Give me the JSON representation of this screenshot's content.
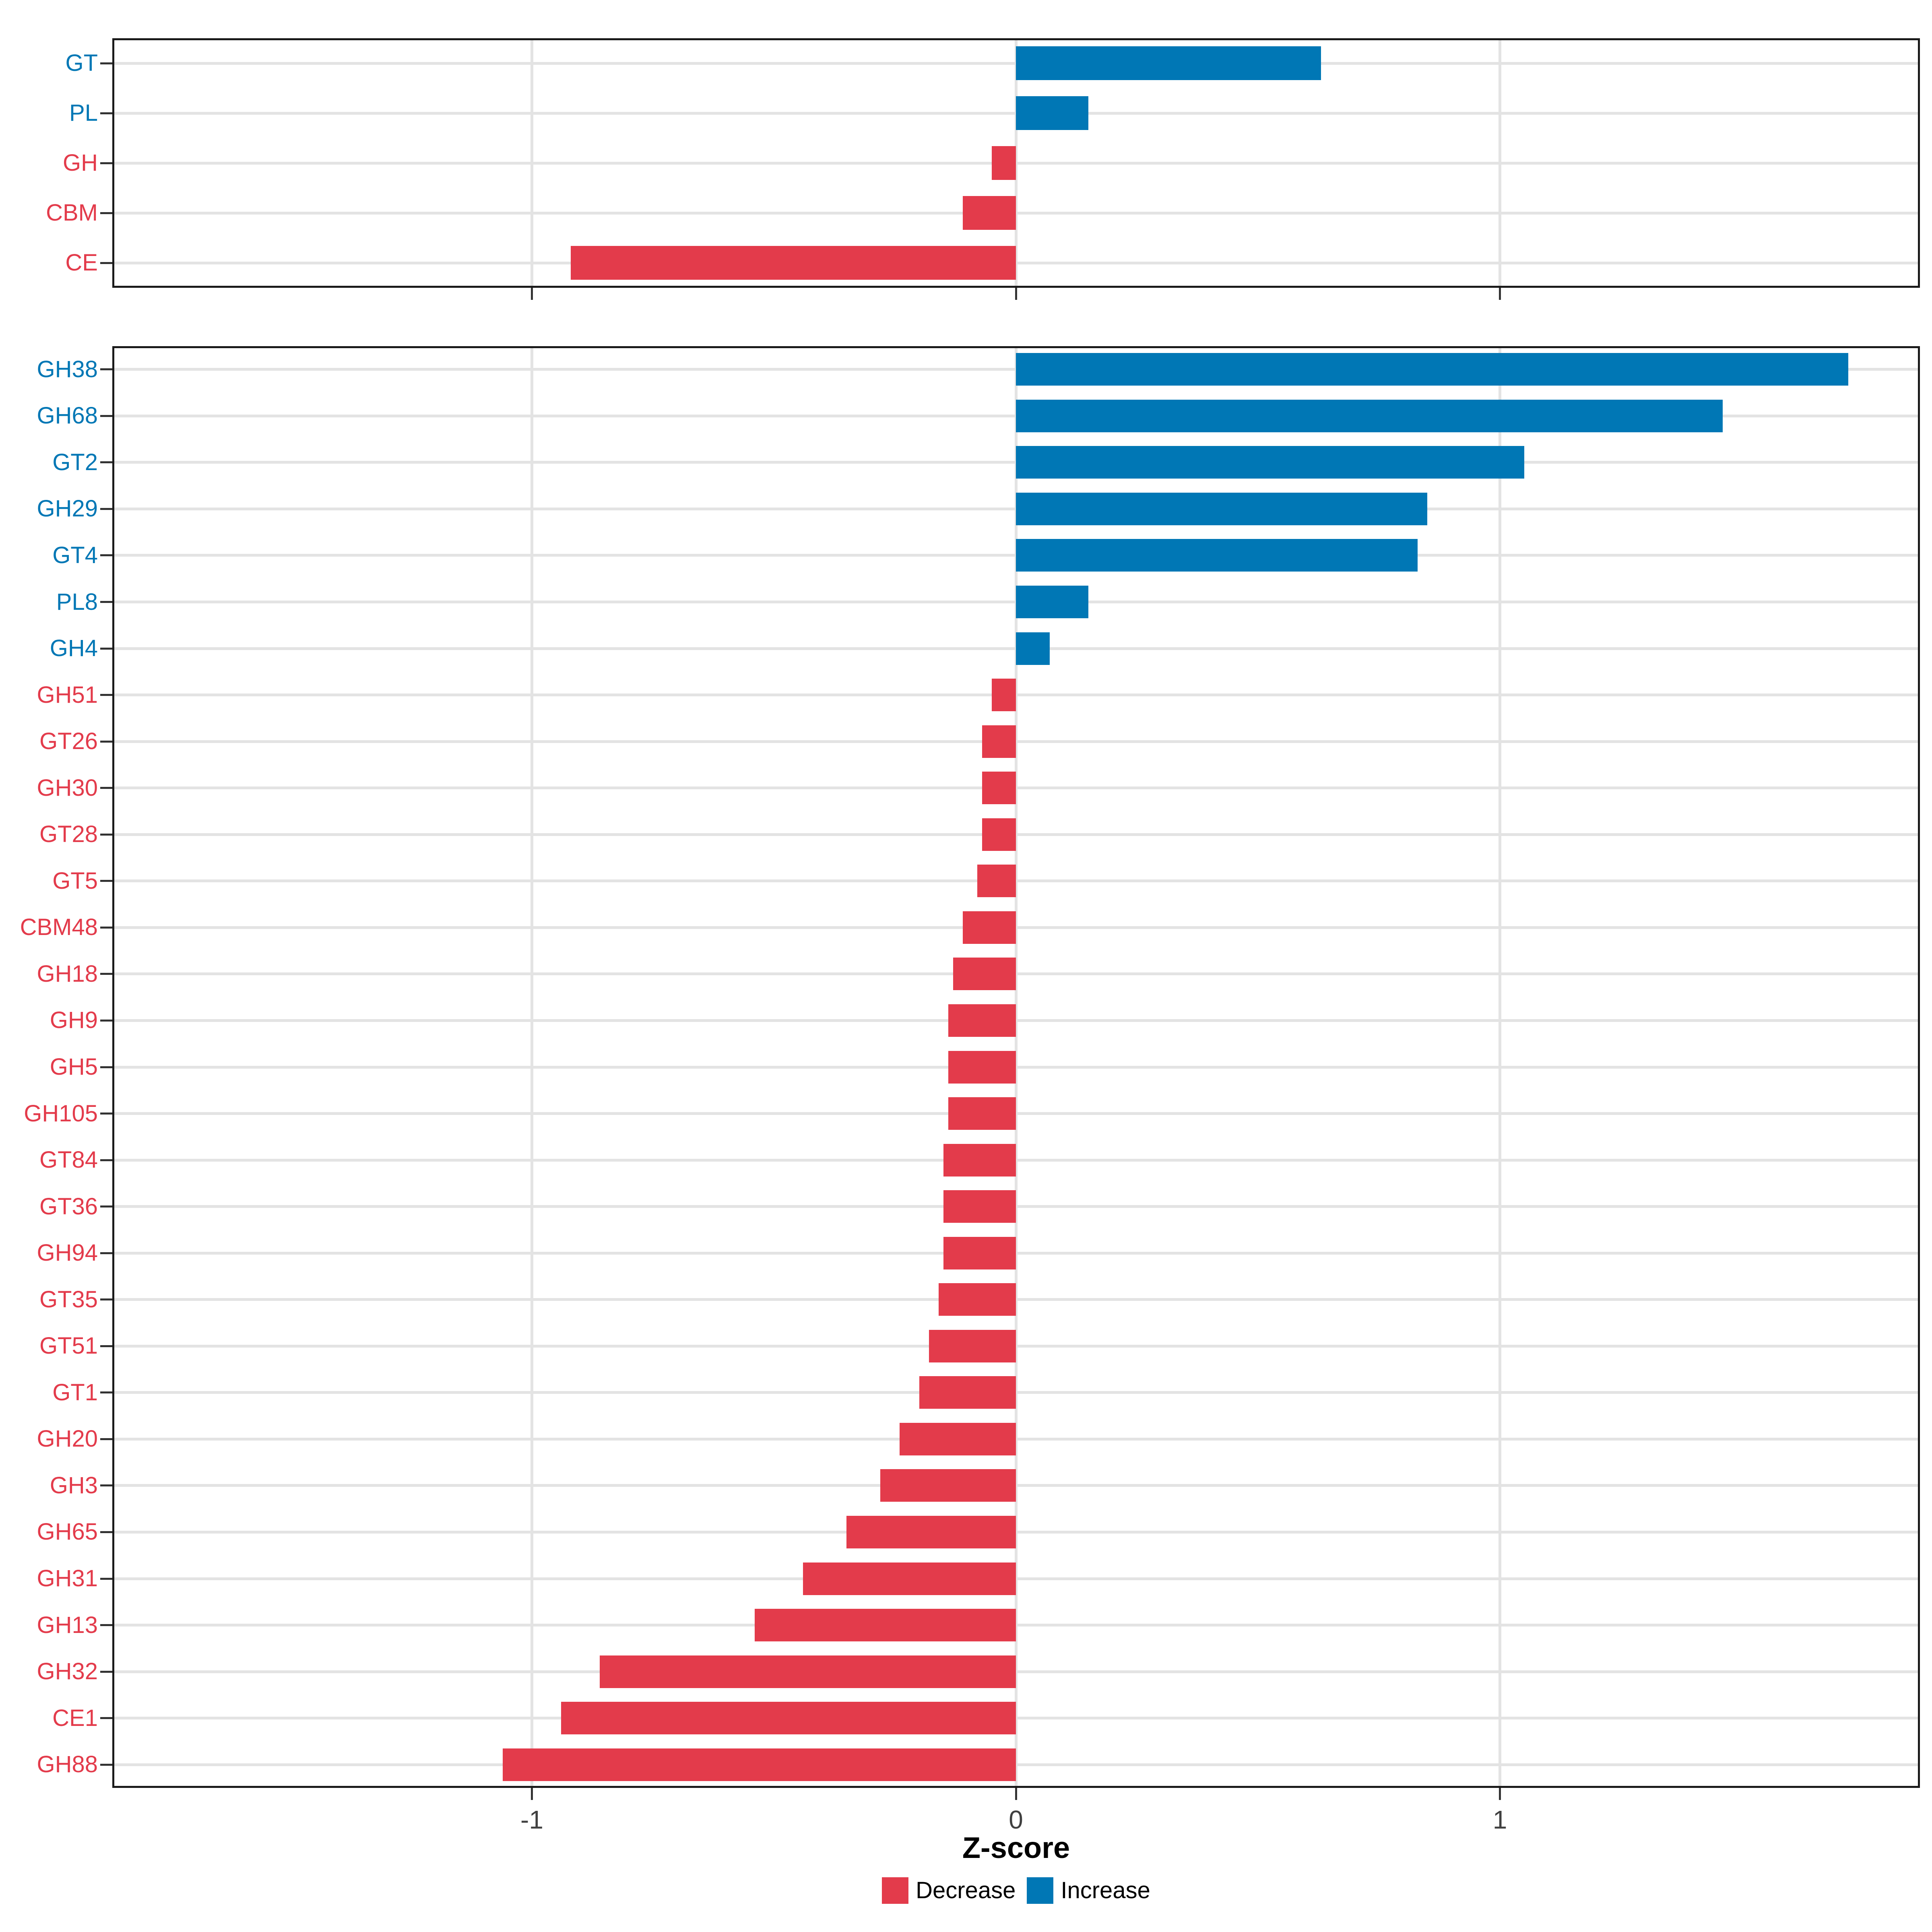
{
  "figure": {
    "xlabel": "Z-score",
    "x_tick_labels": [
      "-1",
      "0",
      "1"
    ],
    "legend": {
      "items": [
        {
          "label": "Decrease",
          "color": "#E33B4B"
        },
        {
          "label": "Increase",
          "color": "#0077B5"
        }
      ]
    },
    "colors": {
      "increase": "#0077B5",
      "decrease": "#E33B4B",
      "grid": "#E3E3E3",
      "panel_border": "#1A1A1A",
      "tick": "#333333",
      "tick_label": "#404040",
      "axis_title": "#000000",
      "background": "#FFFFFF"
    }
  },
  "chart_data": [
    {
      "type": "bar",
      "panel": "top",
      "orientation": "horizontal",
      "title": "",
      "xlabel": "Z-score",
      "categories": [
        "GT",
        "PL",
        "GH",
        "CBM",
        "CE"
      ],
      "values": [
        0.63,
        0.15,
        -0.05,
        -0.11,
        -0.92
      ],
      "direction": [
        "Increase",
        "Increase",
        "Decrease",
        "Decrease",
        "Decrease"
      ],
      "x_ticks": [
        -1,
        0,
        1
      ],
      "xlim": [
        -1.87,
        1.89
      ],
      "grid": true,
      "legend_position": "none"
    },
    {
      "type": "bar",
      "panel": "bottom",
      "orientation": "horizontal",
      "title": "",
      "xlabel": "Z-score",
      "categories": [
        "GH38",
        "GH68",
        "GT2",
        "GH29",
        "GT4",
        "PL8",
        "GH4",
        "GH51",
        "GT26",
        "GH30",
        "GT28",
        "GT5",
        "CBM48",
        "GH18",
        "GH9",
        "GH5",
        "GH105",
        "GT84",
        "GT36",
        "GH94",
        "GT35",
        "GT51",
        "GT1",
        "GH20",
        "GH3",
        "GH65",
        "GH31",
        "GH13",
        "GH32",
        "CE1",
        "GH88"
      ],
      "values": [
        1.72,
        1.46,
        1.05,
        0.85,
        0.83,
        0.15,
        0.07,
        -0.05,
        -0.07,
        -0.07,
        -0.07,
        -0.08,
        -0.11,
        -0.13,
        -0.14,
        -0.14,
        -0.14,
        -0.15,
        -0.15,
        -0.15,
        -0.16,
        -0.18,
        -0.2,
        -0.24,
        -0.28,
        -0.35,
        -0.44,
        -0.54,
        -0.86,
        -0.94,
        -1.06
      ],
      "direction": [
        "Increase",
        "Increase",
        "Increase",
        "Increase",
        "Increase",
        "Increase",
        "Increase",
        "Decrease",
        "Decrease",
        "Decrease",
        "Decrease",
        "Decrease",
        "Decrease",
        "Decrease",
        "Decrease",
        "Decrease",
        "Decrease",
        "Decrease",
        "Decrease",
        "Decrease",
        "Decrease",
        "Decrease",
        "Decrease",
        "Decrease",
        "Decrease",
        "Decrease",
        "Decrease",
        "Decrease",
        "Decrease",
        "Decrease",
        "Decrease"
      ],
      "x_ticks": [
        -1,
        0,
        1
      ],
      "xlim": [
        -1.87,
        1.89
      ],
      "grid": true,
      "legend_position": "bottom"
    }
  ]
}
